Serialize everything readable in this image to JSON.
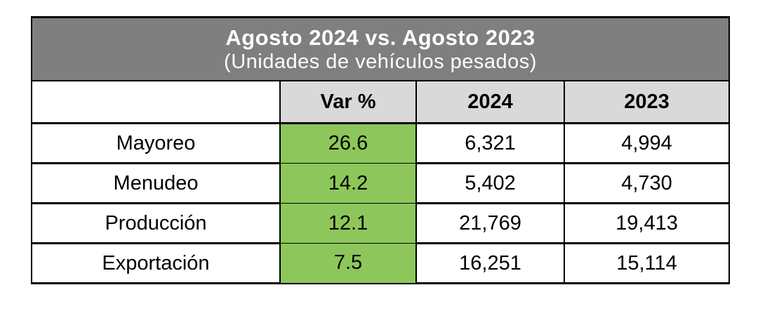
{
  "title": {
    "line1": "Agosto 2024 vs. Agosto 2023",
    "line2": "(Unidades de vehículos pesados)"
  },
  "table": {
    "corner_label": "",
    "headers": [
      "Var %",
      "2024",
      "2023"
    ],
    "rows": [
      {
        "label": "Mayoreo",
        "var": "26.6",
        "v2024": "6,321",
        "v2023": "4,994"
      },
      {
        "label": "Menudeo",
        "var": "14.2",
        "v2024": "5,402",
        "v2023": "4,730"
      },
      {
        "label": "Producción",
        "var": "12.1",
        "v2024": "21,769",
        "v2023": "19,413"
      },
      {
        "label": "Exportación",
        "var": "7.5",
        "v2024": "16,251",
        "v2023": "15,114"
      }
    ]
  },
  "colors": {
    "title_background": "#7f7f7f",
    "title_text": "#ffffff",
    "header_background": "#d9d9d9",
    "positive_var_background": "#8dc75b",
    "border": "#000000",
    "page_background": "#ffffff"
  },
  "chart_data": {
    "type": "table",
    "title": "Agosto 2024 vs. Agosto 2023",
    "subtitle": "(Unidades de vehículos pesados)",
    "columns": [
      "",
      "Var %",
      "2024",
      "2023"
    ],
    "rows": [
      {
        "category": "Mayoreo",
        "var_pct": 26.6,
        "units_2024": 6321,
        "units_2023": 4994
      },
      {
        "category": "Menudeo",
        "var_pct": 14.2,
        "units_2024": 5402,
        "units_2023": 4730
      },
      {
        "category": "Producción",
        "var_pct": 12.1,
        "units_2024": 21769,
        "units_2023": 19413
      },
      {
        "category": "Exportación",
        "var_pct": 7.5,
        "units_2024": 16251,
        "units_2023": 15114
      }
    ]
  }
}
